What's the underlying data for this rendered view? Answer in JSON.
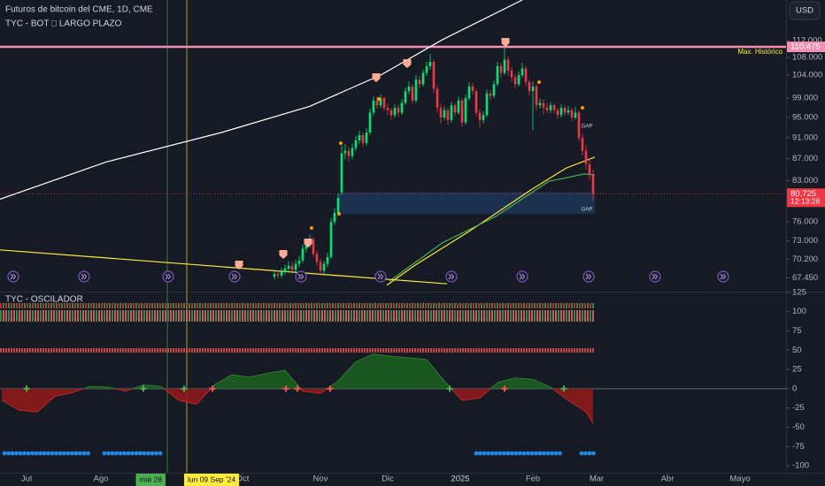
{
  "header": {
    "symbol_title": "Futuros de bitcoin del CME, 1D, CME",
    "indicator_title": "TYC - BOT □ LARGO PLAZO",
    "currency": "USD"
  },
  "chart_data": [
    {
      "type": "candlestick",
      "log_scale": true,
      "up_color": "#00e676",
      "down_color": "#f23645",
      "xlim": [
        -7.5,
        214.5
      ],
      "xticks": [
        {
          "value": 0,
          "label": "Jul"
        },
        {
          "value": 21,
          "label": "Ago"
        },
        {
          "value": 61,
          "label": "Oct"
        },
        {
          "value": 83,
          "label": "Nov"
        },
        {
          "value": 102,
          "label": "Dic"
        },
        {
          "value": 122.5,
          "label": "2025"
        },
        {
          "value": 143,
          "label": "Feb"
        },
        {
          "value": 161,
          "label": "Mar"
        },
        {
          "value": 181,
          "label": "Abr"
        },
        {
          "value": 201.5,
          "label": "Mayo"
        }
      ],
      "ylim": [
        65.5,
        122.1
      ],
      "yticks": [
        {
          "value": 112,
          "label": "112.000"
        },
        {
          "value": 108,
          "label": "108.000"
        },
        {
          "value": 104,
          "label": "104.000"
        },
        {
          "value": 99,
          "label": "99.000"
        },
        {
          "value": 95,
          "label": "95.000"
        },
        {
          "value": 91,
          "label": "91.000"
        },
        {
          "value": 87,
          "label": "87.000"
        },
        {
          "value": 83,
          "label": "83.000"
        },
        {
          "value": 76,
          "label": "76.000"
        },
        {
          "value": 73,
          "label": "73.000"
        },
        {
          "value": 70.2,
          "label": "70.200"
        },
        {
          "value": 67.45,
          "label": "67.450"
        }
      ],
      "x": [
        70,
        71,
        72,
        73,
        74,
        75,
        76,
        77,
        78,
        79,
        80,
        81,
        82,
        83,
        84,
        85,
        86,
        87,
        88,
        89,
        90,
        91,
        92,
        93,
        94,
        95,
        96,
        97,
        98,
        99,
        100,
        101,
        102,
        103,
        104,
        105,
        106,
        107,
        108,
        109,
        110,
        111,
        112,
        113,
        114,
        115,
        116,
        117,
        118,
        119,
        120,
        121,
        122,
        123,
        124,
        125,
        126,
        127,
        128,
        129,
        130,
        131,
        132,
        133,
        134,
        135,
        136,
        137,
        138,
        139,
        140,
        141,
        142,
        143,
        144,
        145,
        146,
        147,
        148,
        149,
        150,
        151,
        152,
        153,
        154,
        155,
        156,
        157,
        158,
        159,
        160
      ],
      "open": [
        67.6,
        68.0,
        67.8,
        68.3,
        68.8,
        69.2,
        68.6,
        69.5,
        70.0,
        71.8,
        72.5,
        73.2,
        71.0,
        69.8,
        68.5,
        69.5,
        70.5,
        76.0,
        77.5,
        81.0,
        88.0,
        88.5,
        87.5,
        89.0,
        90.5,
        91.5,
        90.0,
        92.0,
        96.0,
        98.5,
        97.5,
        99.0,
        97.0,
        96.5,
        95.5,
        97.0,
        96.0,
        98.0,
        100.5,
        101.5,
        98.5,
        103.0,
        102.0,
        104.5,
        106.0,
        107.0,
        101.0,
        97.0,
        95.0,
        96.5,
        94.5,
        97.5,
        96.0,
        98.5,
        94.0,
        99.0,
        101.5,
        100.5,
        96.0,
        94.5,
        95.5,
        100.0,
        99.5,
        102.0,
        106.0,
        104.5,
        107.5,
        105.0,
        103.5,
        102.0,
        104.0,
        105.5,
        102.5,
        100.5,
        101.5,
        97.5,
        98.0,
        97.0,
        96.5,
        97.5,
        96.5,
        95.5,
        97.0,
        96.0,
        96.5,
        95.0,
        96.0,
        91.0,
        88.5,
        86.0,
        84.2
      ],
      "high": [
        68.6,
        68.5,
        68.9,
        69.4,
        69.9,
        69.8,
        70.1,
        70.7,
        72.4,
        73.3,
        74.0,
        73.6,
        71.5,
        70.3,
        70.0,
        71.2,
        76.6,
        78.3,
        80.8,
        89.5,
        89.8,
        89.2,
        89.8,
        91.3,
        92.4,
        92.0,
        92.8,
        96.8,
        99.5,
        99.3,
        99.8,
        99.5,
        97.8,
        97.0,
        97.8,
        97.6,
        98.8,
        101.3,
        102.6,
        102.0,
        104.0,
        103.8,
        105.3,
        107.0,
        108.8,
        107.6,
        101.8,
        97.8,
        97.3,
        97.0,
        98.2,
        98.0,
        99.3,
        99.0,
        99.8,
        102.4,
        102.3,
        101.0,
        96.8,
        96.3,
        100.8,
        100.8,
        102.8,
        107.0,
        106.8,
        110.5,
        108.2,
        105.8,
        104.3,
        104.8,
        106.8,
        106.0,
        103.0,
        102.6,
        102.0,
        99.0,
        98.8,
        98.0,
        98.2,
        98.0,
        97.0,
        97.8,
        97.5,
        97.4,
        97.0,
        97.2,
        96.5,
        91.8,
        89.5,
        87.0,
        85.0
      ],
      "low": [
        67.2,
        67.3,
        67.4,
        67.9,
        68.3,
        68.1,
        68.2,
        69.0,
        69.6,
        71.2,
        72.0,
        70.6,
        69.2,
        67.8,
        68.0,
        69.0,
        70.2,
        75.5,
        77.0,
        80.5,
        86.8,
        86.5,
        86.9,
        88.4,
        89.8,
        89.2,
        89.5,
        91.5,
        95.4,
        96.8,
        96.9,
        96.3,
        95.6,
        94.6,
        95.0,
        95.2,
        95.5,
        97.6,
        99.8,
        97.8,
        98.0,
        101.2,
        101.5,
        103.8,
        105.2,
        100.2,
        96.0,
        93.8,
        94.4,
        93.5,
        94.0,
        95.2,
        95.6,
        93.2,
        93.6,
        98.5,
        99.8,
        95.2,
        93.0,
        93.8,
        95.0,
        98.6,
        99.0,
        101.6,
        103.5,
        104.0,
        104.0,
        102.6,
        101.2,
        101.5,
        103.5,
        101.6,
        99.6,
        92.5,
        96.5,
        96.8,
        95.6,
        95.8,
        95.9,
        95.8,
        94.8,
        95.0,
        95.3,
        95.5,
        94.3,
        94.6,
        90.2,
        87.6,
        85.0,
        83.0,
        79.5
      ],
      "close": [
        68.0,
        67.8,
        68.3,
        68.8,
        69.2,
        68.6,
        69.5,
        70.0,
        71.8,
        72.5,
        73.2,
        71.0,
        69.8,
        68.5,
        69.5,
        70.5,
        76.0,
        77.5,
        80.0,
        88.0,
        88.5,
        87.5,
        89.0,
        90.5,
        91.5,
        90.0,
        92.0,
        96.0,
        98.5,
        97.5,
        99.0,
        97.0,
        96.5,
        95.5,
        97.0,
        96.0,
        98.0,
        100.5,
        101.5,
        98.5,
        103.0,
        102.0,
        104.5,
        106.0,
        107.0,
        101.0,
        97.0,
        95.0,
        96.5,
        94.5,
        97.5,
        96.0,
        98.5,
        94.0,
        99.0,
        101.5,
        100.5,
        96.0,
        94.5,
        95.5,
        100.0,
        99.5,
        102.0,
        106.0,
        104.5,
        107.5,
        105.0,
        103.5,
        102.0,
        104.0,
        105.5,
        102.5,
        100.5,
        101.5,
        97.5,
        98.0,
        97.0,
        96.5,
        97.5,
        96.5,
        95.5,
        97.0,
        96.0,
        96.5,
        95.0,
        96.0,
        91.0,
        88.5,
        86.0,
        84.2,
        80.725
      ],
      "overlays": [
        {
          "color": "#ffffff",
          "x": [
            -7.5,
            22.5,
            55,
            80,
            100,
            117.5,
            140
          ],
          "values": [
            79.8,
            86.4,
            92.0,
            97.3,
            104.0,
            112.2,
            122.1
          ]
        },
        {
          "color": "#ffeb3b",
          "x": [
            101.75,
            110,
            125,
            142.5,
            152.5,
            160.5
          ],
          "values": [
            66.4,
            69.4,
            74.5,
            81.4,
            85.3,
            87.3
          ]
        },
        {
          "color": "#4caf50",
          "x": [
            102.5,
            117.5,
            132.5,
            147.5,
            157.5,
            160.5
          ],
          "values": [
            67.0,
            72.7,
            76.9,
            82.9,
            84.2,
            84.0
          ]
        },
        {
          "color": "#ffeb3b",
          "x": [
            -7.5,
            118.75
          ],
          "values": [
            71.6,
            66.6
          ]
        }
      ],
      "reference_line": {
        "value": 110.475,
        "label": "110.475",
        "name": "Max. Histórico",
        "color": "#f48fb1"
      },
      "last_price": {
        "value": 80.725,
        "label": "80.725",
        "countdown": "12:13:28",
        "color": "#f23645"
      },
      "zone": {
        "x": [
          88,
          160.5
        ],
        "top": 81.0,
        "bottom": 77.3,
        "color": "#1e3a5f"
      },
      "annotations": [
        "GAP",
        "GAP"
      ],
      "x_markers": [
        {
          "value": 39.75,
          "label": "mié 28",
          "color": "#4caf50"
        },
        {
          "value": 45.25,
          "label": "lun 09 Sep '24",
          "color": "#ffeb3b"
        }
      ]
    },
    {
      "type": "area",
      "title": "TYC - OSCILADOR",
      "positive_color": "#1b5e20",
      "negative_color": "#8b1a1a",
      "xlim": [
        -7.5,
        214.5
      ],
      "ylim": [
        -109,
        126
      ],
      "yticks": [
        125,
        100,
        75,
        50,
        25,
        0,
        -25,
        -50,
        -75,
        -100
      ],
      "x": [
        -7,
        -2,
        3,
        8,
        13,
        18,
        23,
        28,
        33,
        38,
        43,
        48,
        53,
        58,
        63,
        68,
        73,
        78,
        83,
        88,
        93,
        98,
        103,
        108,
        113,
        118,
        123,
        128,
        133,
        138,
        143,
        148,
        153,
        158,
        160
      ],
      "values": [
        -15,
        -28,
        -30,
        -10,
        -5,
        3,
        2,
        -3,
        5,
        3,
        -15,
        -20,
        5,
        18,
        15,
        20,
        24,
        -3,
        -6,
        10,
        35,
        45,
        42,
        40,
        38,
        10,
        -15,
        -12,
        8,
        14,
        12,
        2,
        -15,
        -30,
        -45
      ],
      "buy_signals": [
        0,
        33,
        44.5,
        119.5,
        151.75
      ],
      "sell_signals": [
        52.5,
        73.25,
        76.5,
        85.75,
        135
      ]
    }
  ]
}
